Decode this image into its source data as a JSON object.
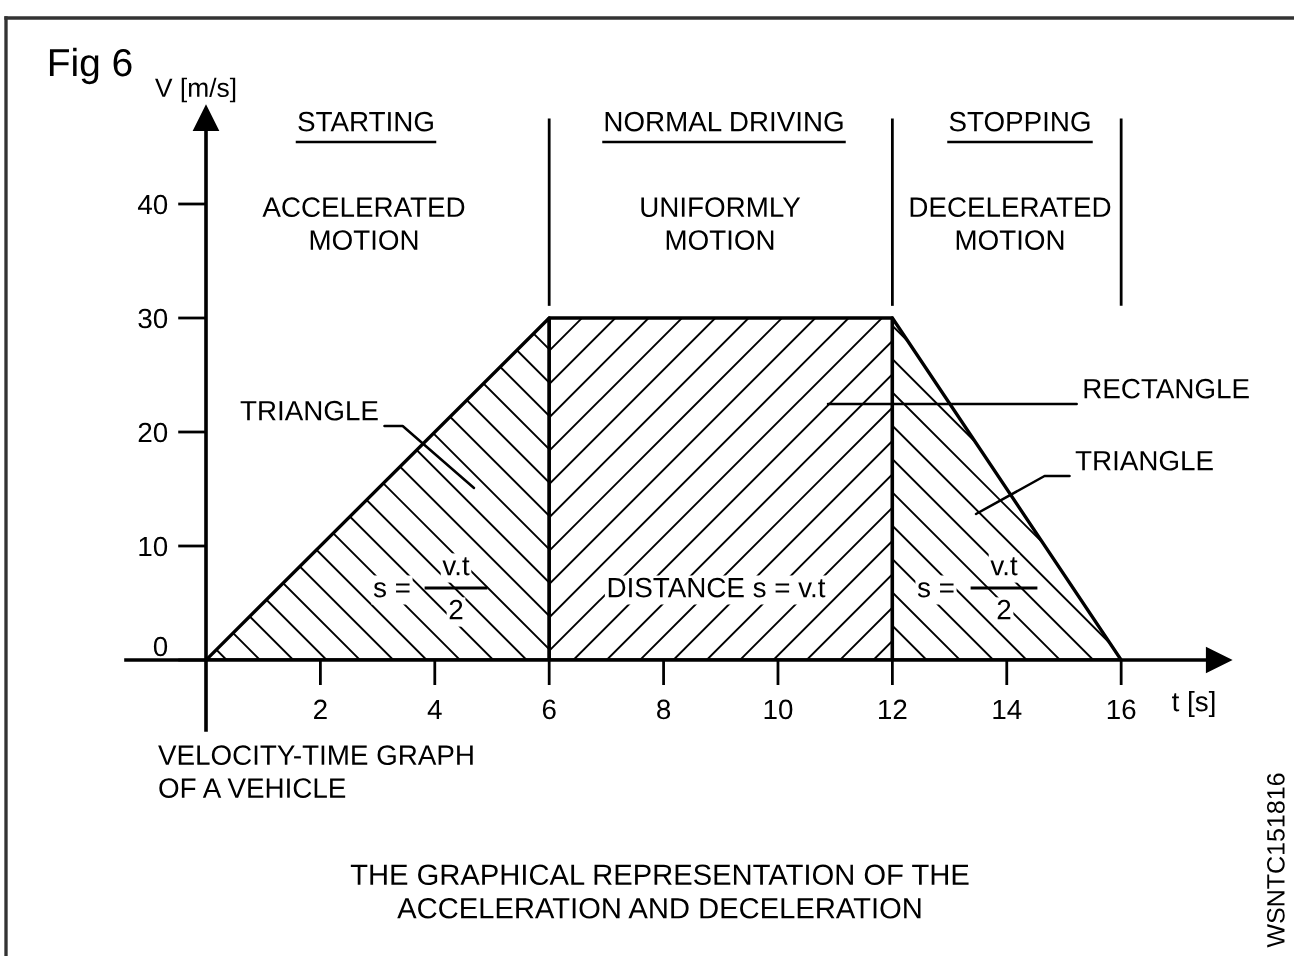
{
  "chart_data": {
    "type": "area",
    "title": "THE GRAPHICAL REPRESENTATION OF THE\nACCELERATION AND DECELERATION",
    "xlabel": "t [s]",
    "ylabel": "V [m/s]",
    "series": [
      {
        "color": "#000000",
        "x": [
          0,
          6
        ],
        "values": [
          0,
          30
        ]
      },
      {
        "color": "#000000",
        "x": [
          6,
          12
        ],
        "values": [
          30,
          30
        ]
      },
      {
        "color": "#000000",
        "x": [
          12,
          16
        ],
        "values": [
          30,
          0
        ]
      }
    ],
    "xlim": [
      0,
      17.7
    ],
    "ylim": [
      0,
      47.5
    ],
    "xticks": [
      2,
      4,
      6,
      8,
      10,
      12,
      14,
      16
    ],
    "yticks": [
      0,
      10,
      20,
      30,
      40
    ],
    "ref_lines": [
      {
        "axis": "x",
        "value": 6
      },
      {
        "axis": "x",
        "value": 12
      },
      {
        "axis": "x",
        "value": 16
      }
    ],
    "annotations": [
      "Fig 6",
      "STARTING",
      "NORMAL DRIVING",
      "STOPPING",
      "ACCELERATED\nMOTION",
      "UNIFORMLY\nMOTION",
      "DECELERATED\nMOTION",
      "TRIANGLE",
      "RECTANGLE",
      "TRIANGLE",
      "s =",
      "v.t",
      "2",
      "DISTANCE s = v.t",
      "s =",
      "v.t",
      "2",
      "VELOCITY-TIME GRAPH\nOF A VEHICLE",
      "WSNTC151816"
    ],
    "grid": false
  }
}
